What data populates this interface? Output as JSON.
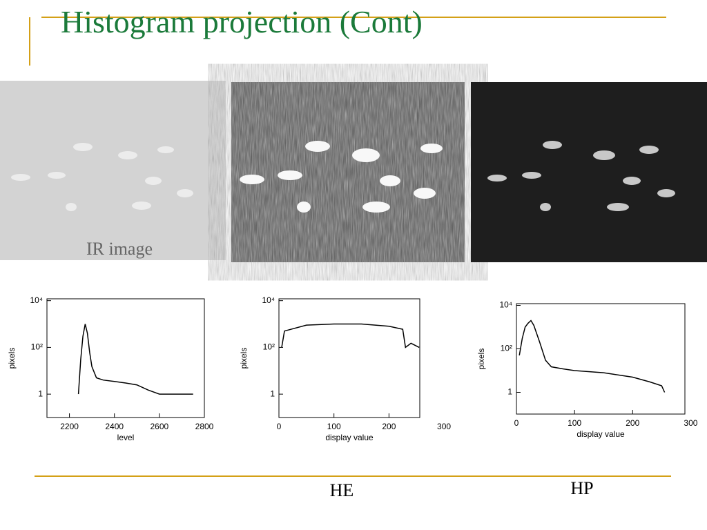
{
  "header": {
    "title": "Histogram projection (Cont)"
  },
  "captions": {
    "ir": "IR image",
    "he": "HE",
    "hp": "HP"
  },
  "chart_data": [
    {
      "type": "line",
      "x_label": "level",
      "y_label": "pixels",
      "log_y": true,
      "color": "#000000",
      "x": [
        2240,
        2250,
        2260,
        2270,
        2280,
        2290,
        2300,
        2320,
        2350,
        2400,
        2450,
        2500,
        2550,
        2600,
        2650,
        2700,
        2750
      ],
      "values": [
        1,
        30,
        300,
        1000,
        400,
        60,
        15,
        5,
        4,
        3.5,
        3,
        2.5,
        1.5,
        1,
        1,
        1,
        1
      ],
      "xlim": [
        2100,
        2800
      ],
      "ylim": [
        0.1,
        12000
      ],
      "xticks": [
        2200,
        2400,
        2600,
        2800
      ],
      "yticks": [
        1,
        {
          "value": 100,
          "label": "10²"
        },
        {
          "value": 10000,
          "label": "10⁴"
        }
      ]
    },
    {
      "type": "line",
      "x_label": "display value",
      "y_label": "pixels",
      "log_y": true,
      "color": "#000000",
      "x": [
        5,
        10,
        50,
        100,
        150,
        200,
        225,
        230,
        240,
        255
      ],
      "values": [
        100,
        500,
        900,
        1000,
        1000,
        800,
        600,
        100,
        150,
        100
      ],
      "xlim": [
        0,
        256
      ],
      "ylim": [
        0.1,
        12000
      ],
      "xticks": [
        0,
        100,
        200,
        300
      ],
      "yticks": [
        1,
        {
          "value": 100,
          "label": "10²"
        },
        {
          "value": 10000,
          "label": "10⁴"
        }
      ]
    },
    {
      "type": "line",
      "x_label": "display value",
      "y_label": "pixels",
      "log_y": true,
      "color": "#000000",
      "x": [
        5,
        10,
        15,
        20,
        25,
        30,
        40,
        50,
        60,
        80,
        100,
        150,
        200,
        230,
        250,
        255
      ],
      "values": [
        50,
        300,
        1000,
        1500,
        2000,
        1200,
        200,
        30,
        15,
        12,
        10,
        8,
        5,
        3,
        2,
        1
      ],
      "xlim": [
        0,
        290
      ],
      "ylim": [
        0.1,
        12000
      ],
      "xticks": [
        0,
        100,
        200,
        300
      ],
      "yticks": [
        1,
        {
          "value": 100,
          "label": "10²"
        },
        {
          "value": 10000,
          "label": "10⁴"
        }
      ]
    }
  ]
}
